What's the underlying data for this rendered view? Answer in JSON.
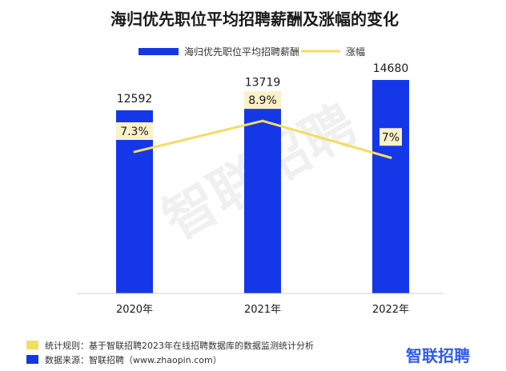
{
  "chart_data": {
    "type": "bar",
    "title": "海归优先职位平均招聘薪酬及涨幅的变化",
    "categories": [
      "2020年",
      "2021年",
      "2022年"
    ],
    "series": [
      {
        "name": "海归优先职位平均招聘薪酬",
        "type": "bar",
        "axis": "left",
        "values": [
          12592,
          13719,
          14680
        ],
        "color": "#1437e8"
      },
      {
        "name": "涨幅",
        "type": "line",
        "axis": "right",
        "values": [
          7.3,
          8.9,
          7.0
        ],
        "labels": [
          "7.3%",
          "8.9%",
          "7%"
        ],
        "color": "#f4dc62"
      }
    ],
    "ylim_left": [
      0,
      16000
    ],
    "ylim_right": [
      0,
      12
    ],
    "grid": false,
    "legend": "top-center"
  },
  "watermark": "智联招聘",
  "footer": {
    "rule_label": "统计规则：基于智联招聘2023年在线招聘数据库的数据监测统计分析",
    "rule_color": "#f4dc62",
    "source_label": "数据来源：智联招聘（www.zhaopin.com）",
    "source_color": "#1437e8",
    "logo": "智联招聘"
  },
  "colors": {
    "label_box": "#fbf1c9",
    "axis": "#d0d0d0"
  }
}
